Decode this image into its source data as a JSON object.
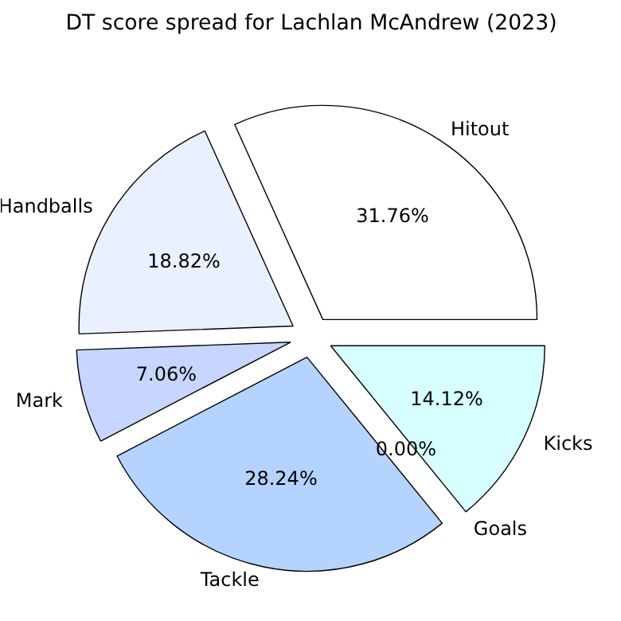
{
  "chart_data": {
    "type": "pie",
    "title": "DT score spread for Lachlan McAndrew (2023)",
    "categories": [
      "Hitout",
      "Handballs",
      "Mark",
      "Tackle",
      "Goals",
      "Kicks"
    ],
    "values": [
      31.76,
      18.82,
      7.06,
      28.24,
      0.0,
      14.12
    ],
    "value_labels": [
      "31.76%",
      "18.82%",
      "7.06%",
      "28.24%",
      "0.00%",
      "14.12%"
    ],
    "colors": [
      "#ffffff",
      "#e9f0ff",
      "#c6d6ff",
      "#b5d3ff",
      "#c0c0ff",
      "#d7ffff"
    ]
  }
}
